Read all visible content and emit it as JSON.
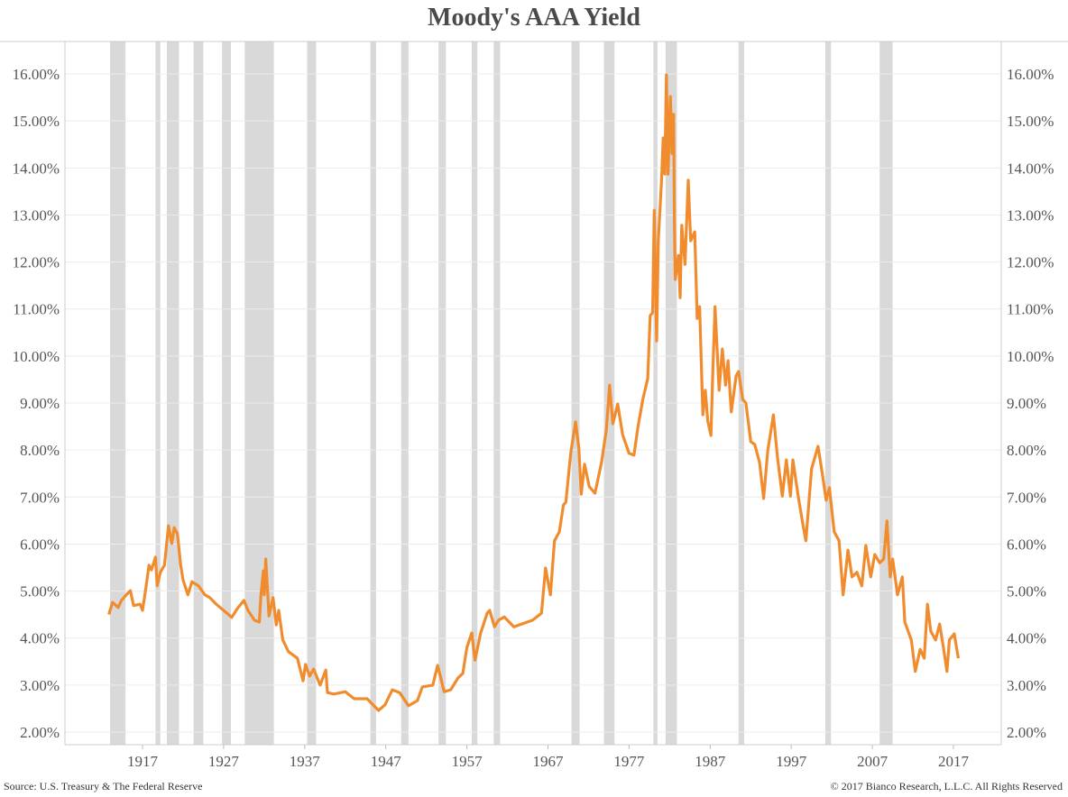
{
  "chart_data": {
    "type": "line",
    "title": "Moody's AAA Yield",
    "xlabel": "",
    "ylabel": "",
    "xlim": [
      1910,
      2022
    ],
    "ylim": [
      2,
      16
    ],
    "x_ticks": [
      "1917",
      "1927",
      "1937",
      "1947",
      "1957",
      "1967",
      "1977",
      "1987",
      "1997",
      "2007",
      "2017"
    ],
    "y_ticks": [
      "2.00%",
      "3.00%",
      "4.00%",
      "5.00%",
      "6.00%",
      "7.00%",
      "8.00%",
      "9.00%",
      "10.00%",
      "11.00%",
      "12.00%",
      "13.00%",
      "14.00%",
      "15.00%",
      "16.00%"
    ],
    "y_axis_sides": [
      "left",
      "right"
    ],
    "grid": "horizontal",
    "line_color": "#f08c2e",
    "recession_color": "#d9d9d9",
    "recessions": [
      [
        1913.0,
        1914.9
      ],
      [
        1918.6,
        1919.2
      ],
      [
        1920.0,
        1921.5
      ],
      [
        1923.3,
        1924.5
      ],
      [
        1926.8,
        1927.9
      ],
      [
        1929.6,
        1933.2
      ],
      [
        1937.3,
        1938.4
      ],
      [
        1945.1,
        1945.8
      ],
      [
        1948.9,
        1949.8
      ],
      [
        1953.5,
        1954.4
      ],
      [
        1957.6,
        1958.3
      ],
      [
        1960.3,
        1961.1
      ],
      [
        1969.9,
        1970.9
      ],
      [
        1973.9,
        1975.2
      ],
      [
        1980.0,
        1980.5
      ],
      [
        1981.5,
        1982.9
      ],
      [
        1990.5,
        1991.2
      ],
      [
        2001.2,
        2001.9
      ],
      [
        2007.9,
        2009.5
      ]
    ],
    "points": [
      [
        1912.85,
        4.5
      ],
      [
        1913.3,
        4.76
      ],
      [
        1914.0,
        4.65
      ],
      [
        1914.4,
        4.8
      ],
      [
        1915.0,
        4.92
      ],
      [
        1915.5,
        5.01
      ],
      [
        1915.9,
        4.69
      ],
      [
        1916.7,
        4.72
      ],
      [
        1917.0,
        4.59
      ],
      [
        1917.4,
        5.05
      ],
      [
        1917.8,
        5.55
      ],
      [
        1918.1,
        5.45
      ],
      [
        1918.6,
        5.72
      ],
      [
        1918.8,
        5.11
      ],
      [
        1919.2,
        5.4
      ],
      [
        1919.7,
        5.55
      ],
      [
        1920.2,
        6.39
      ],
      [
        1920.6,
        6.01
      ],
      [
        1920.9,
        6.35
      ],
      [
        1921.3,
        6.22
      ],
      [
        1921.7,
        5.55
      ],
      [
        1922.0,
        5.24
      ],
      [
        1922.6,
        4.92
      ],
      [
        1923.1,
        5.2
      ],
      [
        1923.9,
        5.11
      ],
      [
        1924.7,
        4.92
      ],
      [
        1925.3,
        4.86
      ],
      [
        1926.1,
        4.72
      ],
      [
        1927.0,
        4.59
      ],
      [
        1928.0,
        4.44
      ],
      [
        1928.7,
        4.63
      ],
      [
        1929.5,
        4.8
      ],
      [
        1930.0,
        4.59
      ],
      [
        1930.8,
        4.38
      ],
      [
        1931.4,
        4.34
      ],
      [
        1931.6,
        4.92
      ],
      [
        1931.9,
        5.43
      ],
      [
        1932.0,
        4.92
      ],
      [
        1932.2,
        5.68
      ],
      [
        1932.6,
        4.47
      ],
      [
        1933.1,
        4.86
      ],
      [
        1933.5,
        4.28
      ],
      [
        1933.8,
        4.59
      ],
      [
        1934.3,
        3.96
      ],
      [
        1935.0,
        3.71
      ],
      [
        1936.1,
        3.57
      ],
      [
        1936.8,
        3.09
      ],
      [
        1937.1,
        3.44
      ],
      [
        1937.6,
        3.19
      ],
      [
        1938.1,
        3.34
      ],
      [
        1938.9,
        3.0
      ],
      [
        1939.6,
        3.32
      ],
      [
        1939.8,
        2.84
      ],
      [
        1940.6,
        2.81
      ],
      [
        1942.0,
        2.86
      ],
      [
        1943.1,
        2.71
      ],
      [
        1944.7,
        2.71
      ],
      [
        1946.1,
        2.46
      ],
      [
        1946.9,
        2.58
      ],
      [
        1947.8,
        2.9
      ],
      [
        1948.7,
        2.84
      ],
      [
        1949.8,
        2.56
      ],
      [
        1950.9,
        2.67
      ],
      [
        1951.5,
        2.96
      ],
      [
        1952.8,
        3.0
      ],
      [
        1953.4,
        3.42
      ],
      [
        1954.2,
        2.86
      ],
      [
        1955.0,
        2.9
      ],
      [
        1955.9,
        3.15
      ],
      [
        1956.5,
        3.25
      ],
      [
        1957.0,
        3.8
      ],
      [
        1957.6,
        4.11
      ],
      [
        1958.0,
        3.53
      ],
      [
        1958.7,
        4.11
      ],
      [
        1959.5,
        4.53
      ],
      [
        1959.8,
        4.59
      ],
      [
        1960.4,
        4.24
      ],
      [
        1960.9,
        4.38
      ],
      [
        1961.6,
        4.45
      ],
      [
        1962.8,
        4.24
      ],
      [
        1965.1,
        4.38
      ],
      [
        1966.2,
        4.53
      ],
      [
        1966.7,
        5.49
      ],
      [
        1967.3,
        4.92
      ],
      [
        1967.8,
        6.07
      ],
      [
        1968.4,
        6.26
      ],
      [
        1968.9,
        6.83
      ],
      [
        1969.2,
        6.89
      ],
      [
        1969.8,
        7.93
      ],
      [
        1970.4,
        8.6
      ],
      [
        1970.8,
        8.04
      ],
      [
        1971.1,
        7.06
      ],
      [
        1971.5,
        7.7
      ],
      [
        1972.1,
        7.22
      ],
      [
        1972.8,
        7.08
      ],
      [
        1973.6,
        7.73
      ],
      [
        1974.2,
        8.43
      ],
      [
        1974.6,
        9.38
      ],
      [
        1975.0,
        8.56
      ],
      [
        1975.6,
        8.98
      ],
      [
        1976.2,
        8.33
      ],
      [
        1977.0,
        7.93
      ],
      [
        1977.6,
        7.89
      ],
      [
        1978.1,
        8.5
      ],
      [
        1978.7,
        9.08
      ],
      [
        1979.3,
        9.52
      ],
      [
        1979.6,
        10.86
      ],
      [
        1979.9,
        10.92
      ],
      [
        1980.1,
        13.1
      ],
      [
        1980.4,
        10.32
      ],
      [
        1980.6,
        12.45
      ],
      [
        1981.0,
        13.74
      ],
      [
        1981.2,
        14.64
      ],
      [
        1981.4,
        13.87
      ],
      [
        1981.6,
        15.98
      ],
      [
        1981.8,
        13.87
      ],
      [
        1982.1,
        15.52
      ],
      [
        1982.3,
        14.31
      ],
      [
        1982.5,
        15.14
      ],
      [
        1982.6,
        12.78
      ],
      [
        1982.7,
        11.63
      ],
      [
        1983.1,
        12.14
      ],
      [
        1983.3,
        11.24
      ],
      [
        1983.5,
        12.78
      ],
      [
        1983.9,
        11.95
      ],
      [
        1984.3,
        13.74
      ],
      [
        1984.6,
        12.45
      ],
      [
        1985.1,
        12.64
      ],
      [
        1985.4,
        10.8
      ],
      [
        1985.7,
        11.05
      ],
      [
        1986.1,
        8.75
      ],
      [
        1986.4,
        9.27
      ],
      [
        1986.7,
        8.62
      ],
      [
        1987.1,
        8.31
      ],
      [
        1987.3,
        9.52
      ],
      [
        1987.6,
        11.05
      ],
      [
        1988.1,
        9.27
      ],
      [
        1988.5,
        10.15
      ],
      [
        1988.9,
        9.38
      ],
      [
        1989.2,
        9.9
      ],
      [
        1989.6,
        8.81
      ],
      [
        1990.2,
        9.58
      ],
      [
        1990.5,
        9.67
      ],
      [
        1991.0,
        9.08
      ],
      [
        1991.4,
        9.0
      ],
      [
        1992.0,
        8.18
      ],
      [
        1992.5,
        8.12
      ],
      [
        1993.1,
        7.73
      ],
      [
        1993.6,
        6.97
      ],
      [
        1994.1,
        7.98
      ],
      [
        1994.8,
        8.75
      ],
      [
        1995.3,
        7.85
      ],
      [
        1995.9,
        7.02
      ],
      [
        1996.4,
        7.79
      ],
      [
        1996.9,
        7.02
      ],
      [
        1997.2,
        7.79
      ],
      [
        1997.9,
        6.97
      ],
      [
        1998.4,
        6.45
      ],
      [
        1998.8,
        6.07
      ],
      [
        1999.5,
        7.6
      ],
      [
        2000.3,
        8.08
      ],
      [
        2000.9,
        7.41
      ],
      [
        2001.3,
        6.93
      ],
      [
        2001.7,
        7.2
      ],
      [
        2002.3,
        6.26
      ],
      [
        2002.9,
        6.07
      ],
      [
        2003.4,
        4.92
      ],
      [
        2004.0,
        5.87
      ],
      [
        2004.5,
        5.3
      ],
      [
        2005.1,
        5.4
      ],
      [
        2005.7,
        5.11
      ],
      [
        2006.2,
        5.97
      ],
      [
        2006.8,
        5.3
      ],
      [
        2007.3,
        5.78
      ],
      [
        2007.9,
        5.6
      ],
      [
        2008.4,
        5.68
      ],
      [
        2008.8,
        6.49
      ],
      [
        2009.2,
        5.3
      ],
      [
        2009.5,
        5.68
      ],
      [
        2010.1,
        4.92
      ],
      [
        2010.7,
        5.3
      ],
      [
        2011.0,
        4.34
      ],
      [
        2011.8,
        3.96
      ],
      [
        2012.3,
        3.29
      ],
      [
        2012.9,
        3.76
      ],
      [
        2013.4,
        3.57
      ],
      [
        2013.8,
        4.72
      ],
      [
        2014.2,
        4.15
      ],
      [
        2014.8,
        3.96
      ],
      [
        2015.3,
        4.3
      ],
      [
        2015.8,
        3.76
      ],
      [
        2016.2,
        3.29
      ],
      [
        2016.5,
        3.96
      ],
      [
        2017.1,
        4.09
      ],
      [
        2017.6,
        3.57
      ]
    ]
  },
  "footer": {
    "source": "Source: U.S. Treasury & The Federal Reserve",
    "copyright": "© 2017 Bianco Research, L.L.C. All Rights Reserved"
  }
}
